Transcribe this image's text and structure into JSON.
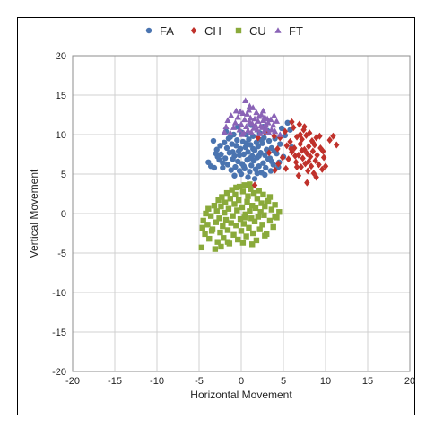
{
  "chart_data": {
    "type": "scatter",
    "title": "",
    "xlabel": "Horizontal Movement",
    "ylabel": "Vertical Movement",
    "xlim": [
      -20,
      20
    ],
    "ylim": [
      -20,
      20
    ],
    "xticks": [
      -20,
      -15,
      -10,
      -5,
      0,
      5,
      10,
      15,
      20
    ],
    "yticks": [
      -20,
      -15,
      -10,
      -5,
      0,
      5,
      10,
      15,
      20
    ],
    "grid": true,
    "legend_position": "top",
    "series": [
      {
        "name": "FA",
        "marker": "circle",
        "color": "#4a74b0",
        "points": [
          [
            -3.6,
            6.0
          ],
          [
            -3.2,
            5.8
          ],
          [
            -3.9,
            6.5
          ],
          [
            -2.8,
            7.2
          ],
          [
            -3.3,
            9.2
          ],
          [
            -2.9,
            8.1
          ],
          [
            -2.6,
            6.8
          ],
          [
            -2.4,
            7.5
          ],
          [
            -2.2,
            5.8
          ],
          [
            -2.0,
            9.0
          ],
          [
            -1.9,
            7.0
          ],
          [
            -1.7,
            8.3
          ],
          [
            -1.6,
            6.2
          ],
          [
            -1.5,
            9.5
          ],
          [
            -1.4,
            7.7
          ],
          [
            -1.2,
            5.5
          ],
          [
            -1.1,
            8.8
          ],
          [
            -1.0,
            6.9
          ],
          [
            -0.9,
            10.0
          ],
          [
            -0.8,
            7.3
          ],
          [
            -0.7,
            5.9
          ],
          [
            -0.6,
            8.6
          ],
          [
            -0.5,
            9.3
          ],
          [
            -0.4,
            6.6
          ],
          [
            -0.3,
            7.9
          ],
          [
            -0.2,
            5.4
          ],
          [
            -0.1,
            8.2
          ],
          [
            0.0,
            10.3
          ],
          [
            0.1,
            6.3
          ],
          [
            0.2,
            9.1
          ],
          [
            0.3,
            7.5
          ],
          [
            0.4,
            5.7
          ],
          [
            0.5,
            8.4
          ],
          [
            0.6,
            10.0
          ],
          [
            0.7,
            6.8
          ],
          [
            0.8,
            7.8
          ],
          [
            0.9,
            9.4
          ],
          [
            1.0,
            5.3
          ],
          [
            1.1,
            8.7
          ],
          [
            1.2,
            6.1
          ],
          [
            1.3,
            7.3
          ],
          [
            1.4,
            9.8
          ],
          [
            1.5,
            6.7
          ],
          [
            1.6,
            8.0
          ],
          [
            1.7,
            5.6
          ],
          [
            1.8,
            9.0
          ],
          [
            1.9,
            7.1
          ],
          [
            2.0,
            8.5
          ],
          [
            2.1,
            6.0
          ],
          [
            2.2,
            10.2
          ],
          [
            2.3,
            7.7
          ],
          [
            2.4,
            5.2
          ],
          [
            2.5,
            8.9
          ],
          [
            2.6,
            6.4
          ],
          [
            2.7,
            9.6
          ],
          [
            2.8,
            7.4
          ],
          [
            2.9,
            5.8
          ],
          [
            3.0,
            8.1
          ],
          [
            3.1,
            10.5
          ],
          [
            3.2,
            6.9
          ],
          [
            3.3,
            9.2
          ],
          [
            3.4,
            7.0
          ],
          [
            3.5,
            5.4
          ],
          [
            3.6,
            8.3
          ],
          [
            3.8,
            6.2
          ],
          [
            4.0,
            9.5
          ],
          [
            4.2,
            7.6
          ],
          [
            4.4,
            5.9
          ],
          [
            4.6,
            8.8
          ],
          [
            4.8,
            10.8
          ],
          [
            5.0,
            7.2
          ],
          [
            5.2,
            9.9
          ],
          [
            5.5,
            11.5
          ],
          [
            5.8,
            10.6
          ],
          [
            6.0,
            8.4
          ],
          [
            -1.8,
            10.4
          ],
          [
            -0.4,
            11.0
          ],
          [
            1.2,
            11.2
          ],
          [
            2.6,
            11.0
          ],
          [
            0.8,
            4.6
          ],
          [
            -0.8,
            4.8
          ],
          [
            1.6,
            4.4
          ],
          [
            2.8,
            4.9
          ],
          [
            -1.3,
            9.7
          ],
          [
            0.3,
            6.0
          ],
          [
            1.0,
            7.0
          ],
          [
            -0.2,
            7.4
          ],
          [
            2.1,
            7.3
          ],
          [
            3.6,
            6.6
          ],
          [
            -2.5,
            8.6
          ],
          [
            0.6,
            8.9
          ],
          [
            1.4,
            8.2
          ],
          [
            -1.0,
            7.8
          ],
          [
            2.4,
            9.3
          ],
          [
            3.9,
            7.9
          ],
          [
            4.5,
            6.5
          ],
          [
            -3.0,
            7.6
          ],
          [
            0.0,
            5.0
          ],
          [
            -2.2,
            6.4
          ],
          [
            1.9,
            5.1
          ]
        ]
      },
      {
        "name": "CH",
        "marker": "diamond",
        "color": "#c0312b",
        "points": [
          [
            4.3,
            8.2
          ],
          [
            4.6,
            9.6
          ],
          [
            4.9,
            7.1
          ],
          [
            5.2,
            10.4
          ],
          [
            5.4,
            8.6
          ],
          [
            5.6,
            6.9
          ],
          [
            5.8,
            9.1
          ],
          [
            6.0,
            7.8
          ],
          [
            6.2,
            10.9
          ],
          [
            6.3,
            8.3
          ],
          [
            6.5,
            6.5
          ],
          [
            6.6,
            9.7
          ],
          [
            6.8,
            7.4
          ],
          [
            6.9,
            11.3
          ],
          [
            7.0,
            8.8
          ],
          [
            7.1,
            5.9
          ],
          [
            7.2,
            9.4
          ],
          [
            7.3,
            7.0
          ],
          [
            7.4,
            10.6
          ],
          [
            7.5,
            8.1
          ],
          [
            7.6,
            6.3
          ],
          [
            7.7,
            9.9
          ],
          [
            7.8,
            7.6
          ],
          [
            7.9,
            5.4
          ],
          [
            8.0,
            8.5
          ],
          [
            8.1,
            10.2
          ],
          [
            8.2,
            7.2
          ],
          [
            8.3,
            6.0
          ],
          [
            8.4,
            9.2
          ],
          [
            8.5,
            7.9
          ],
          [
            8.6,
            5.1
          ],
          [
            8.7,
            8.7
          ],
          [
            8.8,
            6.7
          ],
          [
            8.9,
            9.6
          ],
          [
            9.0,
            7.4
          ],
          [
            9.2,
            6.2
          ],
          [
            9.4,
            8.3
          ],
          [
            9.6,
            5.6
          ],
          [
            9.8,
            7.1
          ],
          [
            10.0,
            6.0
          ],
          [
            10.5,
            9.3
          ],
          [
            10.9,
            9.8
          ],
          [
            11.3,
            8.7
          ],
          [
            7.8,
            3.9
          ],
          [
            8.9,
            4.6
          ],
          [
            6.0,
            11.6
          ],
          [
            6.8,
            4.8
          ],
          [
            4.4,
            6.3
          ],
          [
            5.3,
            5.7
          ],
          [
            3.9,
            9.8
          ],
          [
            9.3,
            9.8
          ],
          [
            6.4,
            7.3
          ],
          [
            7.2,
            8.0
          ],
          [
            8.0,
            6.6
          ],
          [
            5.9,
            8.2
          ],
          [
            7.0,
            10.0
          ],
          [
            8.5,
            9.0
          ],
          [
            6.6,
            5.9
          ],
          [
            9.7,
            7.9
          ],
          [
            7.5,
            11.0
          ],
          [
            2.8,
            10.3
          ],
          [
            3.3,
            7.7
          ],
          [
            1.6,
            3.6
          ],
          [
            2.0,
            9.6
          ],
          [
            4.0,
            5.5
          ]
        ]
      },
      {
        "name": "CU",
        "marker": "square",
        "color": "#8aaa3b",
        "points": [
          [
            -4.7,
            -4.3
          ],
          [
            -4.6,
            -1.8
          ],
          [
            -4.5,
            -0.9
          ],
          [
            -4.3,
            -2.6
          ],
          [
            -4.0,
            -1.4
          ],
          [
            -3.9,
            0.6
          ],
          [
            -3.8,
            -3.2
          ],
          [
            -3.6,
            -0.3
          ],
          [
            -3.4,
            -2.0
          ],
          [
            -3.2,
            1.0
          ],
          [
            -3.1,
            -4.5
          ],
          [
            -3.0,
            -1.1
          ],
          [
            -2.9,
            0.3
          ],
          [
            -2.8,
            -3.6
          ],
          [
            -2.7,
            1.7
          ],
          [
            -2.6,
            -0.6
          ],
          [
            -2.5,
            -2.4
          ],
          [
            -2.4,
            0.9
          ],
          [
            -2.3,
            2.1
          ],
          [
            -2.2,
            -1.6
          ],
          [
            -2.1,
            -3.1
          ],
          [
            -2.0,
            0.1
          ],
          [
            -1.9,
            1.4
          ],
          [
            -1.8,
            -0.8
          ],
          [
            -1.7,
            2.6
          ],
          [
            -1.6,
            -2.1
          ],
          [
            -1.5,
            0.6
          ],
          [
            -1.4,
            -3.8
          ],
          [
            -1.3,
            1.9
          ],
          [
            -1.2,
            -1.2
          ],
          [
            -1.1,
            3.0
          ],
          [
            -1.0,
            -0.3
          ],
          [
            -0.9,
            -2.7
          ],
          [
            -0.8,
            1.2
          ],
          [
            -0.7,
            2.4
          ],
          [
            -0.6,
            -1.5
          ],
          [
            -0.5,
            0.4
          ],
          [
            -0.4,
            -3.3
          ],
          [
            -0.3,
            1.7
          ],
          [
            -0.2,
            3.4
          ],
          [
            -0.1,
            -0.7
          ],
          [
            0.0,
            -2.2
          ],
          [
            0.1,
            0.8
          ],
          [
            0.2,
            2.8
          ],
          [
            0.3,
            -1.3
          ],
          [
            0.4,
            3.6
          ],
          [
            0.5,
            -0.1
          ],
          [
            0.6,
            -2.9
          ],
          [
            0.7,
            1.5
          ],
          [
            0.8,
            2.2
          ],
          [
            0.9,
            -1.8
          ],
          [
            1.0,
            0.3
          ],
          [
            1.1,
            3.1
          ],
          [
            1.2,
            -0.6
          ],
          [
            1.3,
            1.0
          ],
          [
            1.4,
            -2.5
          ],
          [
            1.5,
            2.6
          ],
          [
            1.6,
            -1.0
          ],
          [
            1.7,
            0.7
          ],
          [
            1.8,
            -3.4
          ],
          [
            1.9,
            1.9
          ],
          [
            2.0,
            -0.4
          ],
          [
            2.1,
            2.9
          ],
          [
            2.2,
            -2.0
          ],
          [
            2.3,
            0.2
          ],
          [
            2.4,
            1.3
          ],
          [
            2.5,
            -1.4
          ],
          [
            2.6,
            2.4
          ],
          [
            2.7,
            -0.2
          ],
          [
            2.8,
            0.9
          ],
          [
            3.0,
            -2.6
          ],
          [
            3.2,
            1.6
          ],
          [
            3.4,
            -0.9
          ],
          [
            3.6,
            0.5
          ],
          [
            3.8,
            -1.7
          ],
          [
            4.0,
            1.1
          ],
          [
            4.2,
            -0.5
          ],
          [
            4.5,
            0.2
          ],
          [
            -2.4,
            -4.2
          ],
          [
            -1.6,
            -3.6
          ],
          [
            0.2,
            -3.7
          ],
          [
            1.3,
            -3.9
          ],
          [
            -0.6,
            3.3
          ],
          [
            1.0,
            3.7
          ],
          [
            3.4,
            2.1
          ],
          [
            4.0,
            -0.4
          ],
          [
            -3.5,
            -2.2
          ],
          [
            -4.2,
            0.0
          ],
          [
            2.8,
            -2.8
          ],
          [
            0.4,
            -0.5
          ]
        ]
      },
      {
        "name": "FT",
        "marker": "triangle",
        "color": "#8a63b6",
        "points": [
          [
            -1.6,
            11.8
          ],
          [
            -1.2,
            12.4
          ],
          [
            -0.9,
            10.9
          ],
          [
            -0.7,
            11.5
          ],
          [
            -0.4,
            12.2
          ],
          [
            -0.2,
            10.6
          ],
          [
            0.0,
            11.3
          ],
          [
            0.2,
            12.7
          ],
          [
            0.3,
            10.2
          ],
          [
            0.4,
            11.9
          ],
          [
            0.5,
            14.3
          ],
          [
            0.6,
            11.0
          ],
          [
            0.7,
            12.6
          ],
          [
            0.8,
            10.5
          ],
          [
            0.9,
            13.1
          ],
          [
            1.0,
            11.6
          ],
          [
            1.1,
            12.1
          ],
          [
            1.2,
            10.3
          ],
          [
            1.3,
            11.4
          ],
          [
            1.4,
            13.4
          ],
          [
            1.5,
            10.8
          ],
          [
            1.6,
            12.0
          ],
          [
            1.7,
            11.2
          ],
          [
            1.8,
            12.8
          ],
          [
            1.9,
            10.6
          ],
          [
            2.0,
            11.7
          ],
          [
            2.1,
            12.3
          ],
          [
            2.2,
            10.1
          ],
          [
            2.3,
            11.1
          ],
          [
            2.4,
            12.5
          ],
          [
            2.5,
            10.9
          ],
          [
            2.6,
            11.8
          ],
          [
            2.7,
            10.4
          ],
          [
            2.8,
            12.2
          ],
          [
            2.9,
            11.3
          ],
          [
            3.0,
            10.7
          ],
          [
            3.1,
            12.0
          ],
          [
            3.2,
            11.5
          ],
          [
            3.3,
            10.2
          ],
          [
            3.5,
            11.9
          ],
          [
            3.6,
            10.6
          ],
          [
            3.8,
            11.2
          ],
          [
            4.0,
            10.4
          ],
          [
            4.2,
            11.7
          ],
          [
            -2.0,
            10.3
          ],
          [
            -1.8,
            11.0
          ],
          [
            -0.6,
            13.0
          ],
          [
            -0.1,
            12.9
          ],
          [
            1.0,
            13.6
          ],
          [
            2.6,
            13.0
          ],
          [
            3.9,
            12.4
          ],
          [
            4.6,
            10.0
          ],
          [
            0.1,
            10.0
          ],
          [
            -1.3,
            10.2
          ]
        ]
      }
    ]
  }
}
